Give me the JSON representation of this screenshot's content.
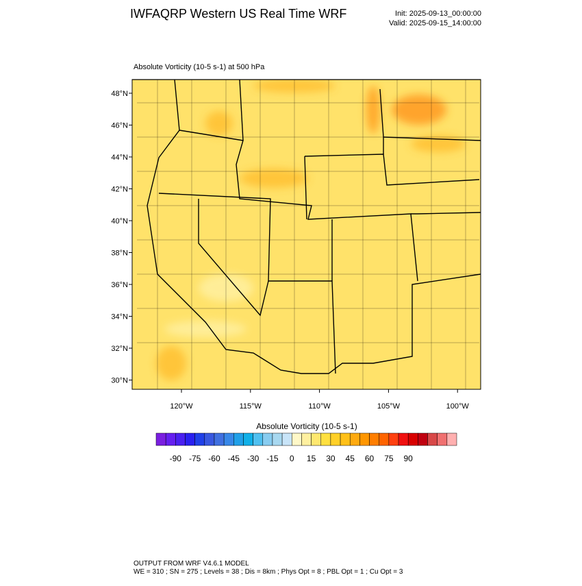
{
  "header": {
    "title": "IWFAQRP Western US Real Time WRF",
    "init": "Init: 2025-09-13_00:00:00",
    "valid": "Valid: 2025-09-15_14:00:00"
  },
  "plot": {
    "subtitle": "Absolute Vorticity   (10-5 s-1)     at   500 hPa"
  },
  "map": {
    "lat_labels": [
      "48°N",
      "46°N",
      "44°N",
      "42°N",
      "40°N",
      "38°N",
      "36°N",
      "34°N",
      "32°N",
      "30°N"
    ],
    "lon_labels": [
      "120°W",
      "115°W",
      "110°W",
      "105°W",
      "100°W"
    ]
  },
  "colorbar": {
    "title": "Absolute Vorticity  (10-5 s-1)",
    "colors": [
      "#7a1fe0",
      "#651ff0",
      "#4a20f0",
      "#2a20f0",
      "#2040e8",
      "#3858e0",
      "#4070e0",
      "#3888e8",
      "#20a0e8",
      "#10b0e8",
      "#50c0f0",
      "#88ccf0",
      "#a8d8f0",
      "#c8e4f8",
      "#fff8c8",
      "#fff0a0",
      "#ffe870",
      "#ffe040",
      "#ffd028",
      "#ffc018",
      "#ffaa10",
      "#ff9600",
      "#ff7e00",
      "#ff6400",
      "#ff4010",
      "#f01010",
      "#d80000",
      "#c00010",
      "#d84848",
      "#f07070",
      "#ffb0b0"
    ],
    "labels": [
      "-90",
      "-75",
      "-60",
      "-45",
      "-30",
      "-15",
      "0",
      "15",
      "30",
      "45",
      "60",
      "75",
      "90"
    ]
  },
  "footer": {
    "lines": [
      "OUTPUT FROM WRF V4.6.1 MODEL",
      "WE = 310 ; SN = 275 ; Levels = 38 ; Dis = 8km ; Phys Opt = 8 ; PBL Opt = 1 ; Cu Opt = 3"
    ]
  }
}
